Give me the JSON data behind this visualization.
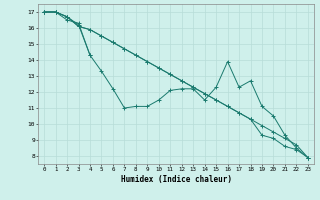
{
  "title": "",
  "xlabel": "Humidex (Indice chaleur)",
  "ylabel": "",
  "xlim": [
    -0.5,
    23.5
  ],
  "ylim": [
    7.5,
    17.5
  ],
  "xtick_labels": [
    "0",
    "1",
    "2",
    "3",
    "4",
    "5",
    "6",
    "7",
    "8",
    "9",
    "10",
    "11",
    "12",
    "13",
    "14",
    "15",
    "16",
    "17",
    "18",
    "19",
    "20",
    "21",
    "22",
    "23"
  ],
  "ytick_labels": [
    "8",
    "9",
    "10",
    "11",
    "12",
    "13",
    "14",
    "15",
    "16",
    "17"
  ],
  "background_color": "#cff0eb",
  "grid_color": "#b8ddd8",
  "line_color": "#1a7a6e",
  "series": [
    [
      17.0,
      17.0,
      16.7,
      16.2,
      14.3,
      null,
      null,
      null,
      null,
      null,
      null,
      null,
      null,
      null,
      null,
      null,
      null,
      null,
      null,
      null,
      null,
      null,
      null,
      null
    ],
    [
      17.0,
      17.0,
      16.7,
      16.1,
      15.9,
      15.5,
      15.1,
      14.7,
      14.3,
      13.9,
      13.5,
      13.1,
      12.7,
      12.3,
      11.9,
      11.5,
      11.1,
      10.7,
      10.3,
      9.9,
      9.5,
      9.1,
      8.7,
      7.9
    ],
    [
      17.0,
      17.0,
      16.7,
      16.1,
      15.9,
      15.5,
      15.1,
      14.7,
      14.3,
      13.9,
      13.5,
      13.1,
      12.7,
      12.3,
      11.9,
      11.5,
      11.1,
      10.7,
      10.3,
      9.3,
      9.1,
      8.6,
      8.4,
      7.9
    ],
    [
      17.0,
      17.0,
      16.5,
      16.3,
      14.3,
      13.3,
      12.2,
      11.0,
      11.1,
      11.1,
      11.5,
      12.1,
      12.2,
      12.2,
      11.5,
      12.3,
      13.9,
      12.3,
      12.7,
      11.1,
      10.5,
      9.3,
      8.5,
      7.9
    ]
  ],
  "figsize": [
    3.2,
    2.0
  ],
  "dpi": 100
}
